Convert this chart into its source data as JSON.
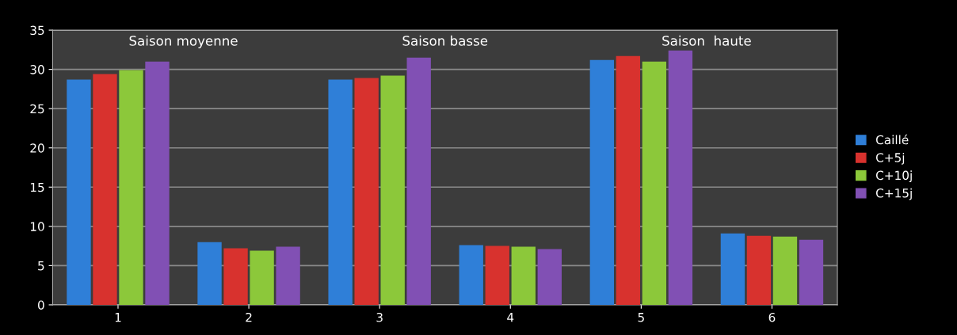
{
  "chart_data": {
    "type": "bar",
    "categories": [
      "1",
      "2",
      "3",
      "4",
      "5",
      "6"
    ],
    "series": [
      {
        "name": "Caillé",
        "color": "#2f7fd8",
        "values": [
          28.7,
          8.0,
          28.7,
          7.6,
          31.2,
          9.1
        ]
      },
      {
        "name": "C+5j",
        "color": "#d8322e",
        "values": [
          29.4,
          7.2,
          28.9,
          7.5,
          31.7,
          8.8
        ]
      },
      {
        "name": "C+10j",
        "color": "#8cc83a",
        "values": [
          29.9,
          6.9,
          29.2,
          7.4,
          31.0,
          8.7
        ]
      },
      {
        "name": "C+15j",
        "color": "#8150b4",
        "values": [
          31.0,
          7.4,
          31.5,
          7.1,
          32.4,
          8.3
        ]
      }
    ],
    "annotations": [
      "Saison moyenne",
      "Saison basse",
      "Saison  haute"
    ],
    "ylim": [
      0,
      35
    ],
    "yticks": [
      0,
      5,
      10,
      15,
      20,
      25,
      30,
      35
    ],
    "grid": "y",
    "legend": "right"
  }
}
